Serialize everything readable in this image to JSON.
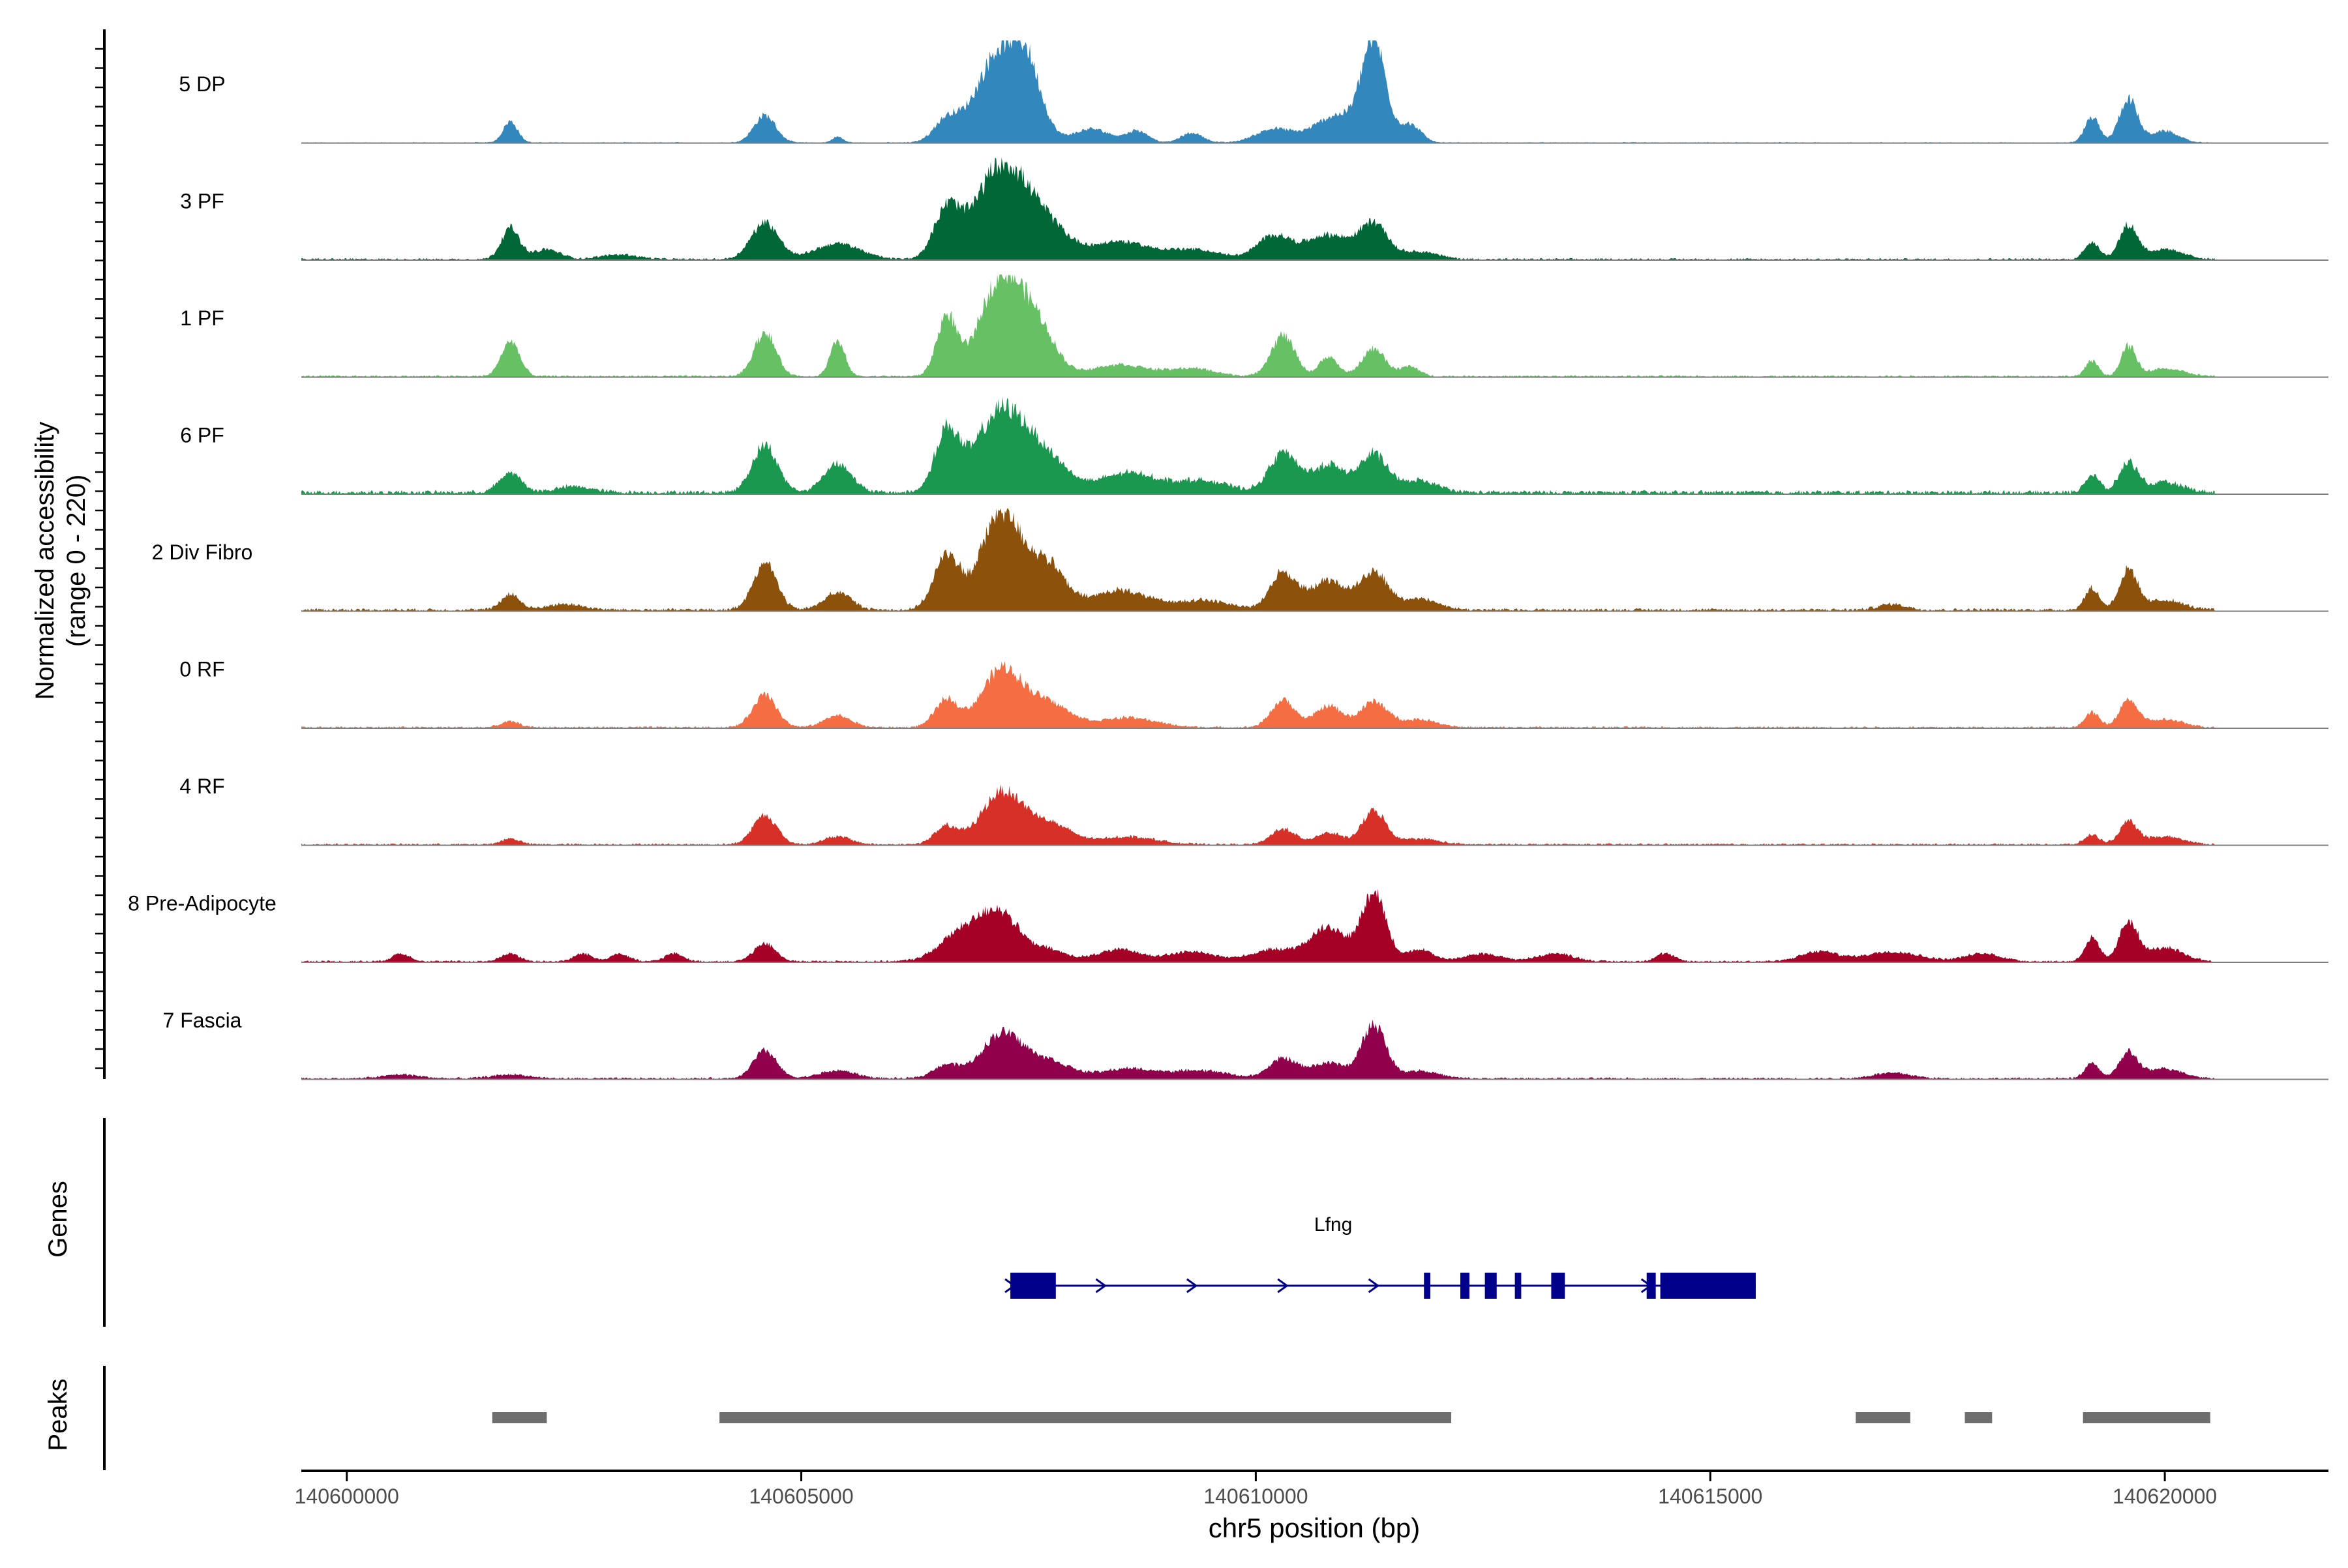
{
  "chart_data": {
    "type": "area",
    "title": "",
    "xlabel": "chr5 position (bp)",
    "ylabel_line1": "Normalized accessibility",
    "ylabel_line2": "(range 0 - 220)",
    "y_range": [
      0,
      220
    ],
    "x_range": [
      140599500,
      140621800
    ],
    "x_ticks": [
      {
        "value": 140600000,
        "label": "140600000"
      },
      {
        "value": 140605000,
        "label": "140605000"
      },
      {
        "value": 140610000,
        "label": "140610000"
      },
      {
        "value": 140615000,
        "label": "140615000"
      },
      {
        "value": 140620000,
        "label": "140620000"
      }
    ],
    "signal_range": [
      140599500,
      140620550
    ],
    "tracks": [
      {
        "name": "5 DP",
        "color": "#3288BD",
        "peaks": [
          [
            140601800,
            0.22,
            80
          ],
          [
            140604600,
            0.28,
            120
          ],
          [
            140605400,
            0.06,
            60
          ],
          [
            140606600,
            0.22,
            140
          ],
          [
            140607200,
            0.95,
            260
          ],
          [
            140607500,
            0.45,
            150
          ],
          [
            140608200,
            0.14,
            200
          ],
          [
            140608700,
            0.12,
            120
          ],
          [
            140609300,
            0.1,
            120
          ],
          [
            140610200,
            0.14,
            200
          ],
          [
            140610900,
            0.28,
            250
          ],
          [
            140611300,
            1.0,
            130
          ],
          [
            140611700,
            0.18,
            120
          ],
          [
            140619200,
            0.26,
            80
          ],
          [
            140619600,
            0.45,
            100
          ],
          [
            140620000,
            0.12,
            150
          ]
        ],
        "base": 0.01
      },
      {
        "name": "3 PF",
        "color": "#006837",
        "peaks": [
          [
            140601800,
            0.32,
            100
          ],
          [
            140602200,
            0.1,
            150
          ],
          [
            140603000,
            0.05,
            200
          ],
          [
            140604600,
            0.38,
            150
          ],
          [
            140605400,
            0.16,
            250
          ],
          [
            140606600,
            0.48,
            140
          ],
          [
            140607200,
            0.95,
            280
          ],
          [
            140607700,
            0.3,
            250
          ],
          [
            140608500,
            0.18,
            300
          ],
          [
            140609300,
            0.1,
            300
          ],
          [
            140610200,
            0.24,
            180
          ],
          [
            140610800,
            0.25,
            250
          ],
          [
            140611300,
            0.35,
            150
          ],
          [
            140611800,
            0.08,
            200
          ],
          [
            140619200,
            0.18,
            80
          ],
          [
            140619600,
            0.34,
            100
          ],
          [
            140620000,
            0.1,
            200
          ]
        ],
        "base": 0.02
      },
      {
        "name": "1 PF",
        "color": "#66C164",
        "peaks": [
          [
            140601800,
            0.36,
            100
          ],
          [
            140604600,
            0.45,
            120
          ],
          [
            140605400,
            0.36,
            80
          ],
          [
            140606600,
            0.6,
            110
          ],
          [
            140607200,
            1.0,
            230
          ],
          [
            140607600,
            0.45,
            200
          ],
          [
            140608500,
            0.12,
            300
          ],
          [
            140609300,
            0.08,
            250
          ],
          [
            140610300,
            0.42,
            130
          ],
          [
            140610800,
            0.2,
            100
          ],
          [
            140611300,
            0.28,
            130
          ],
          [
            140611700,
            0.1,
            100
          ],
          [
            140619200,
            0.16,
            70
          ],
          [
            140619600,
            0.3,
            80
          ],
          [
            140620000,
            0.08,
            200
          ]
        ],
        "base": 0.02
      },
      {
        "name": "6 PF",
        "color": "#1A9850",
        "peaks": [
          [
            140601800,
            0.2,
            120
          ],
          [
            140602500,
            0.06,
            200
          ],
          [
            140604600,
            0.48,
            140
          ],
          [
            140605400,
            0.3,
            150
          ],
          [
            140606600,
            0.6,
            130
          ],
          [
            140607200,
            0.82,
            280
          ],
          [
            140607700,
            0.3,
            250
          ],
          [
            140608600,
            0.2,
            300
          ],
          [
            140609400,
            0.12,
            300
          ],
          [
            140610300,
            0.4,
            150
          ],
          [
            140610800,
            0.28,
            200
          ],
          [
            140611300,
            0.38,
            150
          ],
          [
            140611800,
            0.12,
            200
          ],
          [
            140619200,
            0.18,
            80
          ],
          [
            140619600,
            0.3,
            100
          ],
          [
            140620000,
            0.1,
            200
          ]
        ],
        "base": 0.04
      },
      {
        "name": "2 Div Fibro",
        "color": "#8C510A",
        "peaks": [
          [
            140601800,
            0.16,
            100
          ],
          [
            140602400,
            0.06,
            200
          ],
          [
            140604600,
            0.48,
            130
          ],
          [
            140605400,
            0.18,
            150
          ],
          [
            140606600,
            0.55,
            140
          ],
          [
            140607200,
            1.0,
            220
          ],
          [
            140607700,
            0.45,
            200
          ],
          [
            140608500,
            0.2,
            300
          ],
          [
            140609400,
            0.1,
            300
          ],
          [
            140610300,
            0.38,
            140
          ],
          [
            140610800,
            0.3,
            200
          ],
          [
            140611300,
            0.38,
            150
          ],
          [
            140611800,
            0.12,
            200
          ],
          [
            140617000,
            0.06,
            150
          ],
          [
            140619200,
            0.22,
            80
          ],
          [
            140619600,
            0.4,
            100
          ],
          [
            140620000,
            0.1,
            200
          ]
        ],
        "base": 0.03
      },
      {
        "name": "0 RF",
        "color": "#F46D43",
        "peaks": [
          [
            140601800,
            0.06,
            100
          ],
          [
            140604600,
            0.33,
            130
          ],
          [
            140605400,
            0.12,
            150
          ],
          [
            140606600,
            0.28,
            130
          ],
          [
            140607200,
            0.58,
            220
          ],
          [
            140607700,
            0.25,
            250
          ],
          [
            140608600,
            0.1,
            300
          ],
          [
            140610300,
            0.28,
            130
          ],
          [
            140610800,
            0.22,
            150
          ],
          [
            140611300,
            0.26,
            150
          ],
          [
            140611800,
            0.08,
            200
          ],
          [
            140619200,
            0.15,
            80
          ],
          [
            140619600,
            0.28,
            100
          ],
          [
            140620000,
            0.08,
            200
          ]
        ],
        "base": 0.02
      },
      {
        "name": "4 RF",
        "color": "#D73027",
        "peaks": [
          [
            140601800,
            0.06,
            100
          ],
          [
            140604600,
            0.3,
            130
          ],
          [
            140605400,
            0.08,
            150
          ],
          [
            140606600,
            0.18,
            130
          ],
          [
            140607200,
            0.52,
            220
          ],
          [
            140607700,
            0.22,
            250
          ],
          [
            140608600,
            0.08,
            300
          ],
          [
            140610300,
            0.16,
            130
          ],
          [
            140610800,
            0.12,
            150
          ],
          [
            140611300,
            0.34,
            130
          ],
          [
            140611800,
            0.06,
            200
          ],
          [
            140619200,
            0.1,
            80
          ],
          [
            140619600,
            0.22,
            100
          ],
          [
            140620000,
            0.08,
            200
          ]
        ],
        "base": 0.02
      },
      {
        "name": "8 Pre-Adipocyte",
        "color": "#A50026",
        "peaks": [
          [
            140600600,
            0.08,
            100
          ],
          [
            140601800,
            0.08,
            100
          ],
          [
            140602600,
            0.08,
            100
          ],
          [
            140603000,
            0.08,
            100
          ],
          [
            140603600,
            0.08,
            100
          ],
          [
            140604600,
            0.18,
            120
          ],
          [
            140606800,
            0.32,
            250
          ],
          [
            140607200,
            0.44,
            200
          ],
          [
            140607700,
            0.12,
            200
          ],
          [
            140608500,
            0.12,
            250
          ],
          [
            140609300,
            0.1,
            250
          ],
          [
            140610200,
            0.12,
            250
          ],
          [
            140610800,
            0.35,
            200
          ],
          [
            140611300,
            0.72,
            130
          ],
          [
            140611800,
            0.12,
            150
          ],
          [
            140612500,
            0.08,
            200
          ],
          [
            140613300,
            0.08,
            200
          ],
          [
            140614500,
            0.08,
            100
          ],
          [
            140616200,
            0.1,
            200
          ],
          [
            140617000,
            0.1,
            300
          ],
          [
            140618000,
            0.08,
            200
          ],
          [
            140619200,
            0.24,
            80
          ],
          [
            140619600,
            0.4,
            100
          ],
          [
            140620000,
            0.14,
            200
          ]
        ],
        "base": 0.02
      },
      {
        "name": "7 Fascia",
        "color": "#91004B",
        "peaks": [
          [
            140600600,
            0.04,
            200
          ],
          [
            140601800,
            0.04,
            200
          ],
          [
            140604600,
            0.28,
            130
          ],
          [
            140605400,
            0.08,
            200
          ],
          [
            140606600,
            0.14,
            150
          ],
          [
            140607200,
            0.45,
            220
          ],
          [
            140607700,
            0.18,
            250
          ],
          [
            140608600,
            0.1,
            300
          ],
          [
            140609400,
            0.08,
            300
          ],
          [
            140610300,
            0.2,
            150
          ],
          [
            140610800,
            0.16,
            200
          ],
          [
            140611300,
            0.55,
            130
          ],
          [
            140611800,
            0.08,
            200
          ],
          [
            140617000,
            0.06,
            200
          ],
          [
            140619200,
            0.16,
            80
          ],
          [
            140619600,
            0.26,
            100
          ],
          [
            140620000,
            0.1,
            200
          ]
        ],
        "base": 0.02
      }
    ],
    "genes": [
      {
        "name": "Lfng",
        "color": "#00008B",
        "start": 140607300,
        "end": 140615500,
        "exons": [
          [
            140607300,
            140607800
          ],
          [
            140611850,
            140611920
          ],
          [
            140612250,
            140612350
          ],
          [
            140612520,
            140612650
          ],
          [
            140612850,
            140612920
          ],
          [
            140613250,
            140613400
          ],
          [
            140614300,
            140614400
          ],
          [
            140614450,
            140615500
          ]
        ],
        "arrows": [
          140607300,
          140608300,
          140609300,
          140610300,
          140611300,
          140614300
        ]
      }
    ],
    "peak_regions": [
      [
        140601600,
        140602200
      ],
      [
        140604100,
        140612150
      ],
      [
        140616600,
        140617200
      ],
      [
        140617800,
        140618100
      ],
      [
        140619100,
        140620500
      ]
    ],
    "panel_labels": {
      "genes": "Genes",
      "peaks": "Peaks"
    }
  }
}
